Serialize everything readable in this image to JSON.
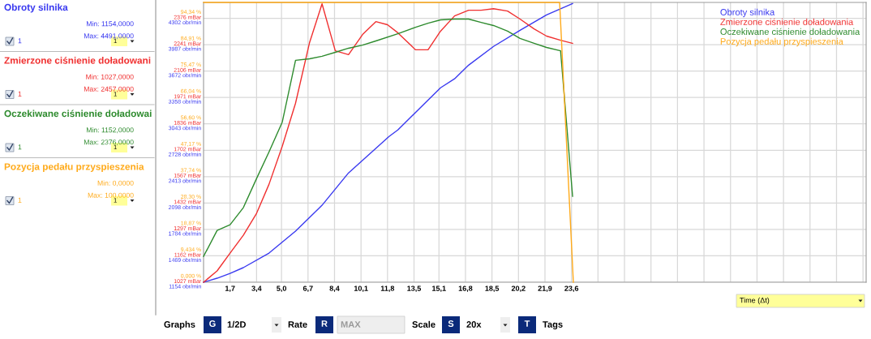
{
  "chart_data": {
    "type": "line",
    "xlabel": "Time (Δt)",
    "xlim": [
      0,
      42.5
    ],
    "xticks": [
      {
        "value": 1.7,
        "label": "1,7"
      },
      {
        "value": 3.4,
        "label": "3,4"
      },
      {
        "value": 5.0,
        "label": "5,0"
      },
      {
        "value": 6.7,
        "label": "6,7"
      },
      {
        "value": 8.4,
        "label": "8,4"
      },
      {
        "value": 10.1,
        "label": "10,1"
      },
      {
        "value": 11.8,
        "label": "11,8"
      },
      {
        "value": 13.5,
        "label": "13,5"
      },
      {
        "value": 15.1,
        "label": "15,1"
      },
      {
        "value": 16.8,
        "label": "16,8"
      },
      {
        "value": 18.5,
        "label": "18,5"
      },
      {
        "value": 20.2,
        "label": "20,2"
      },
      {
        "value": 21.9,
        "label": "21,9"
      },
      {
        "value": 23.6,
        "label": "23,6"
      },
      {
        "value": 25.3,
        "label": null
      },
      {
        "value": 27.0,
        "label": null
      },
      {
        "value": 28.7,
        "label": null
      },
      {
        "value": 30.4,
        "label": null
      },
      {
        "value": 32.1,
        "label": null
      },
      {
        "value": 33.8,
        "label": null
      },
      {
        "value": 35.5,
        "label": null
      },
      {
        "value": 37.2,
        "label": null
      },
      {
        "value": 38.9,
        "label": null
      },
      {
        "value": 40.6,
        "label": null
      },
      {
        "value": 42.3,
        "label": null
      }
    ],
    "ylim": [
      1154,
      4491
    ],
    "yticks": [
      {
        "value": 1154,
        "label": "1154 obr/min"
      },
      {
        "value": 1469,
        "label": "1469 obr/min"
      },
      {
        "value": 1784,
        "label": "1784 obr/min"
      },
      {
        "value": 2098,
        "label": "2098 obr/min"
      },
      {
        "value": 2413,
        "label": "2413 obr/min"
      },
      {
        "value": 2728,
        "label": "2728 obr/min"
      },
      {
        "value": 3043,
        "label": "3043 obr/min"
      },
      {
        "value": 3358,
        "label": "3358 obr/min"
      },
      {
        "value": 3672,
        "label": "3672 obr/min"
      },
      {
        "value": 3987,
        "label": "3987 obr/min"
      },
      {
        "value": 4302,
        "label": "4302 obr/min"
      }
    ],
    "y2lim": [
      1027,
      2457
    ],
    "y2ticks": [
      {
        "value": 1027,
        "label": "1027 mBar"
      },
      {
        "value": 1162,
        "label": "1162 mBar"
      },
      {
        "value": 1297,
        "label": "1297 mBar"
      },
      {
        "value": 1432,
        "label": "1432 mBar"
      },
      {
        "value": 1567,
        "label": "1567 mBar"
      },
      {
        "value": 1702,
        "label": "1702 mBar"
      },
      {
        "value": 1836,
        "label": "1836 mBar"
      },
      {
        "value": 1971,
        "label": "1971 mBar"
      },
      {
        "value": 2106,
        "label": "2106 mBar"
      },
      {
        "value": 2241,
        "label": "2241 mBar"
      },
      {
        "value": 2376,
        "label": "2376 mBar"
      }
    ],
    "y3lim": [
      0,
      100
    ],
    "y3ticks": [
      {
        "value": 0,
        "label": "0,000 %"
      },
      {
        "value": 9.434,
        "label": "9,434 %"
      },
      {
        "value": 18.87,
        "label": "18,87 %"
      },
      {
        "value": 28.3,
        "label": "28,30 %"
      },
      {
        "value": 37.74,
        "label": "37,74 %"
      },
      {
        "value": 47.17,
        "label": "47,17 %"
      },
      {
        "value": 56.6,
        "label": "56,60 %"
      },
      {
        "value": 66.04,
        "label": "66,04 %"
      },
      {
        "value": 75.47,
        "label": "75,47 %"
      },
      {
        "value": 84.91,
        "label": "84,91 %"
      },
      {
        "value": 94.34,
        "label": "94,34 %"
      }
    ],
    "grid": true,
    "legend": "top right",
    "series": [
      {
        "name": "Obroty silnika",
        "color": "#3a3af0",
        "x": [
          0,
          0.87,
          1.7,
          2.55,
          4.2,
          5.9,
          7.6,
          9.3,
          11.9,
          12.46,
          15.2,
          16.1,
          17.0,
          18.6,
          20.3,
          22.0,
          23.67
        ],
        "values": [
          1154,
          1202,
          1260,
          1328,
          1502,
          1763,
          2072,
          2458,
          2893,
          2970,
          3473,
          3580,
          3743,
          3966,
          4159,
          4342,
          4478
        ]
      },
      {
        "name": "Zmierzone ciśnienie doładowania",
        "color": "#f03030",
        "axis": "y2",
        "x": [
          0,
          0.87,
          1.7,
          2.55,
          3.4,
          4.2,
          5.05,
          5.9,
          6.8,
          7.6,
          8.45,
          9.3,
          10.2,
          11.05,
          11.8,
          12.46,
          13.6,
          14.4,
          15.2,
          16.1,
          17.0,
          17.8,
          18.6,
          19.5,
          20.3,
          21.2,
          22.0,
          22.9,
          23.67
        ],
        "values": [
          1027,
          1085,
          1176,
          1267,
          1379,
          1528,
          1722,
          1942,
          2252,
          2450,
          2210,
          2190,
          2293,
          2359,
          2343,
          2302,
          2215,
          2215,
          2310,
          2388,
          2417,
          2417,
          2425,
          2413,
          2372,
          2322,
          2285,
          2264,
          2248
        ]
      },
      {
        "name": "Oczekiwane ciśnienie doładowania",
        "color": "#2e8b2e",
        "axis": "y2",
        "x": [
          0,
          0.87,
          1.7,
          2.55,
          3.4,
          4.2,
          5.05,
          5.9,
          6.8,
          7.6,
          8.45,
          9.3,
          10.2,
          11.05,
          12.46,
          13.6,
          14.4,
          15.2,
          16.1,
          17.0,
          17.8,
          18.6,
          19.5,
          20.3,
          21.2,
          22.0,
          22.9,
          23.67
        ],
        "values": [
          1159,
          1292,
          1321,
          1408,
          1557,
          1693,
          1846,
          2161,
          2169,
          2182,
          2202,
          2223,
          2239,
          2260,
          2297,
          2330,
          2351,
          2368,
          2372,
          2372,
          2355,
          2339,
          2310,
          2273,
          2248,
          2227,
          2210,
          1466
        ]
      },
      {
        "name": "Pozycja pedału przyspieszenia",
        "color": "#ffaa1a",
        "axis": "y3",
        "x": [
          0,
          22.84,
          23.72
        ],
        "values": [
          100,
          100,
          0
        ]
      }
    ],
    "annotations": [
      "Obroty silnika",
      "Min: 1154,0000",
      "Max: 4491,0000",
      "1",
      "1",
      "Zmierzone ciśnienie doładowani",
      "Min: 1027,0000",
      "Max: 2457,0000",
      "1",
      "1",
      "Oczekiwane ciśnienie doładowai",
      "Min: 1152,0000",
      "Max: 2376,0000",
      "1",
      "1",
      "Pozycja pedału przyspieszenia",
      "Min: 0,0000",
      "Max: 100,0000",
      "1",
      "1",
      "Graphs",
      "G",
      "1/2D",
      "Rate",
      "R",
      "MAX",
      "Scale",
      "S",
      "20x",
      "T",
      "Tags"
    ]
  }
}
